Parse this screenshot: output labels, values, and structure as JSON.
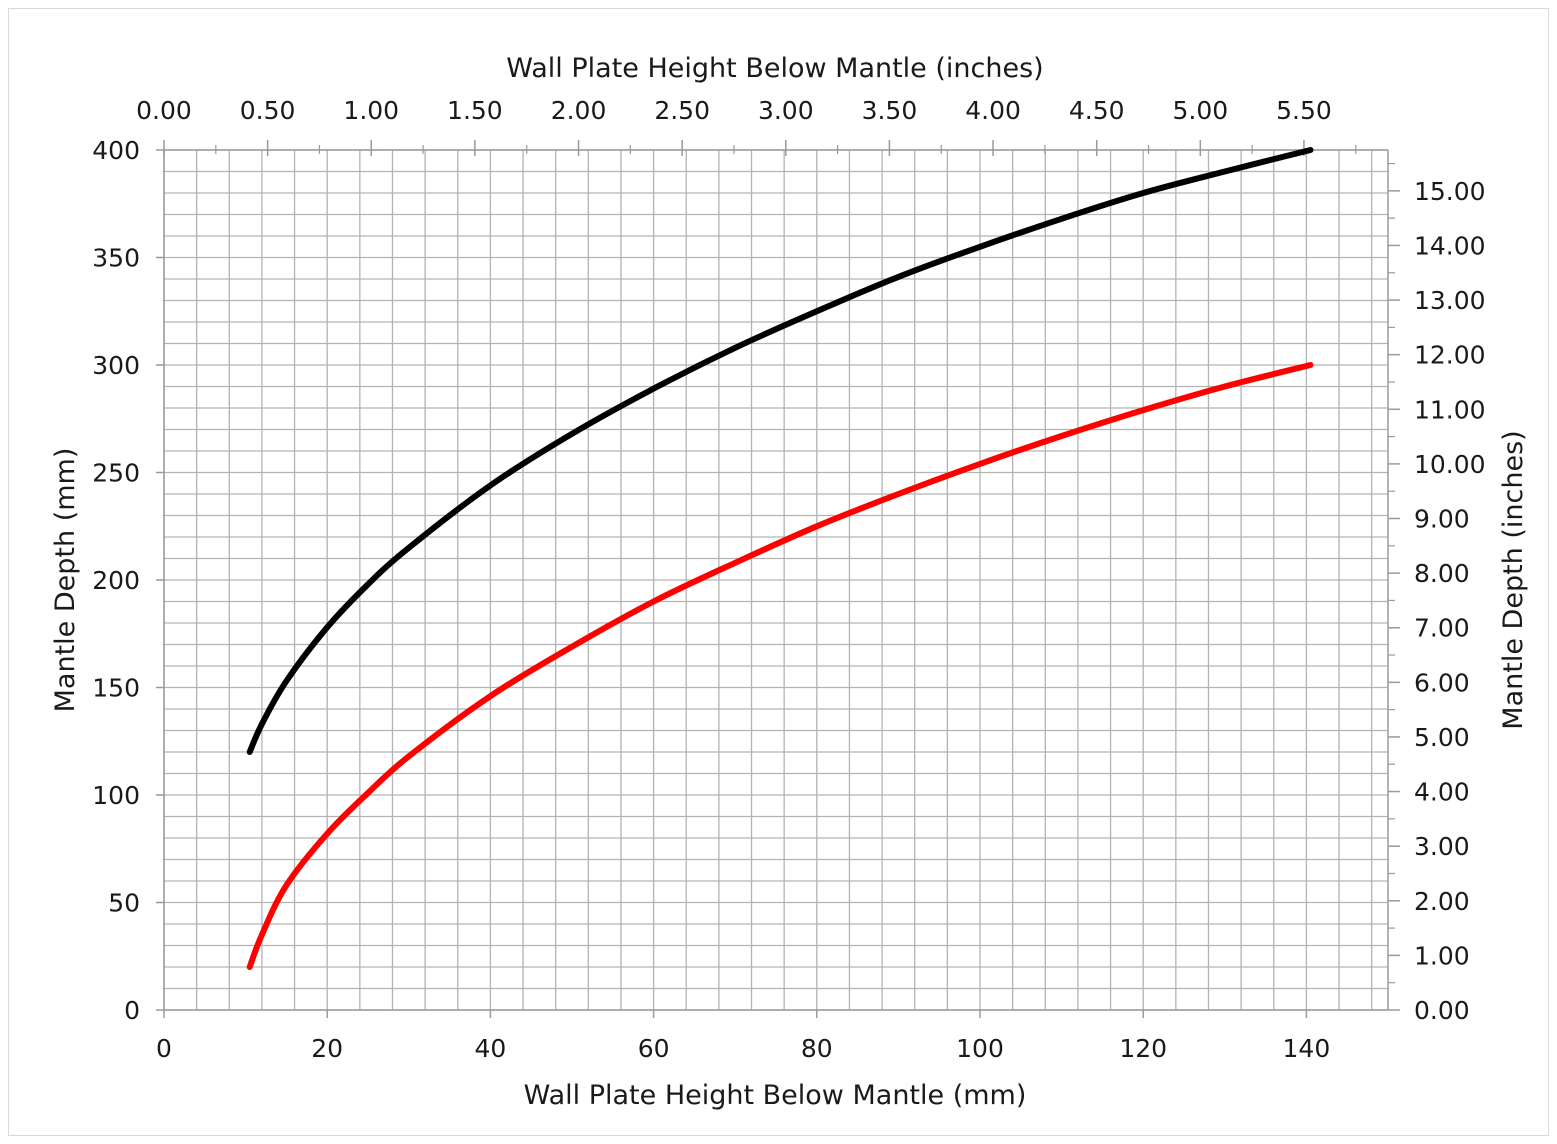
{
  "chart_data": {
    "type": "line",
    "title": "",
    "x_bottom": {
      "label": "Wall Plate Height Below Mantle (mm)",
      "min": 0,
      "max": 150,
      "ticks": [
        0,
        20,
        40,
        60,
        80,
        100,
        120,
        140
      ],
      "tick_labels": [
        "0",
        "20",
        "40",
        "60",
        "80",
        "100",
        "120",
        "140"
      ]
    },
    "x_top": {
      "label": "Wall Plate Height Below Mantle (inches)",
      "ticks": [
        0,
        0.5,
        1,
        1.5,
        2,
        2.5,
        3,
        3.5,
        4,
        4.5,
        5,
        5.5
      ],
      "tick_labels": [
        "0.00",
        "0.50",
        "1.00",
        "1.50",
        "2.00",
        "2.50",
        "3.00",
        "3.50",
        "4.00",
        "4.50",
        "5.00",
        "5.50"
      ]
    },
    "y_left": {
      "label": "Mantle Depth (mm)",
      "min": 0,
      "max": 400,
      "ticks": [
        0,
        50,
        100,
        150,
        200,
        250,
        300,
        350,
        400
      ],
      "tick_labels": [
        "0",
        "50",
        "100",
        "150",
        "200",
        "250",
        "300",
        "350",
        "400"
      ]
    },
    "y_right": {
      "label": "Mantle Depth (inches)",
      "ticks": [
        0,
        1,
        2,
        3,
        4,
        5,
        6,
        7,
        8,
        9,
        10,
        11,
        12,
        13,
        14,
        15
      ],
      "tick_labels": [
        "0.00",
        "1.00",
        "2.00",
        "3.00",
        "4.00",
        "5.00",
        "6.00",
        "7.00",
        "8.00",
        "9.00",
        "10.00",
        "11.00",
        "12.00",
        "13.00",
        "14.00",
        "15.00"
      ]
    },
    "grid": true,
    "series": [
      {
        "color": "#000000",
        "x": [
          10.5,
          12,
          15,
          20,
          25,
          30,
          40,
          50,
          60,
          70,
          80,
          90,
          100,
          110,
          120,
          130,
          140.5
        ],
        "y": [
          120,
          133,
          153,
          178,
          198,
          215,
          244,
          268,
          289,
          308,
          325,
          341,
          355,
          368,
          380,
          390,
          400
        ]
      },
      {
        "color": "#ff0000",
        "x": [
          10.5,
          12,
          15,
          20,
          25,
          30,
          40,
          50,
          60,
          70,
          80,
          90,
          100,
          110,
          120,
          130,
          140.5
        ],
        "y": [
          20,
          35,
          58,
          82,
          101,
          118,
          146,
          169,
          190,
          208,
          225,
          240,
          254,
          267,
          279,
          290,
          300
        ]
      }
    ]
  }
}
